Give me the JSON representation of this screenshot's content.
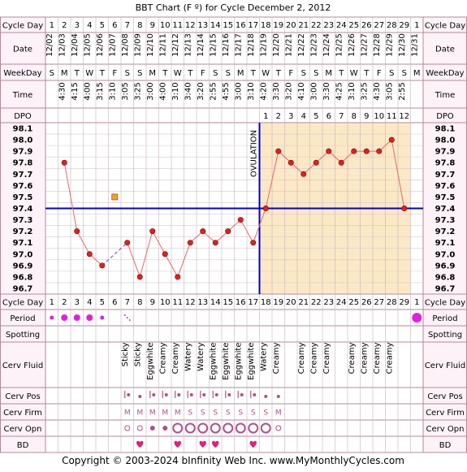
{
  "title": "BBT Chart (F º) for Cycle December 2, 2012",
  "footer": "Copyright © 2003-2024 bInfinity Web Inc.    www.MyMonthlyCycles.com",
  "row_labels": {
    "cycle_day": "Cycle Day",
    "date": "Date",
    "weekday": "WeekDay",
    "time": "Time",
    "dpo": "DPO",
    "period": "Period",
    "spotting": "Spotting",
    "cerv_fluid": "Cerv Fluid",
    "cerv_pos": "Cerv Pos",
    "cerv_firm": "Cerv Firm",
    "cerv_opn": "Cerv Opn",
    "bd": "BD"
  },
  "colors": {
    "border": "#b3899b",
    "label_bg": "#fdf2f7",
    "post_ovulation_bg": "#fbe9c6",
    "coverline": "#0000cc",
    "ovulation_line": "#0000cc",
    "temp_line": "#e26b6b",
    "temp_point": "#e02020",
    "period": "#e020e0",
    "heart": "#e0207a",
    "cerv_marker": "#b0508a"
  },
  "chart_data": {
    "type": "line",
    "cycle_days": [
      "1",
      "2",
      "3",
      "4",
      "5",
      "6",
      "7",
      "8",
      "9",
      "10",
      "11",
      "12",
      "13",
      "14",
      "15",
      "16",
      "17",
      "18",
      "19",
      "20",
      "21",
      "22",
      "23",
      "24",
      "25",
      "26",
      "27",
      "28",
      "29",
      "1"
    ],
    "dates": [
      "12/02",
      "12/03",
      "12/04",
      "12/05",
      "12/06",
      "12/07",
      "12/08",
      "12/09",
      "12/10",
      "12/11",
      "12/12",
      "12/13",
      "12/14",
      "12/15",
      "12/16",
      "12/17",
      "12/18",
      "12/19",
      "12/20",
      "12/21",
      "12/22",
      "12/23",
      "12/24",
      "12/25",
      "12/26",
      "12/27",
      "12/28",
      "12/29",
      "12/30",
      "12/31"
    ],
    "weekdays": [
      "S",
      "M",
      "T",
      "W",
      "T",
      "F",
      "S",
      "S",
      "M",
      "T",
      "W",
      "T",
      "F",
      "S",
      "S",
      "M",
      "T",
      "W",
      "T",
      "F",
      "S",
      "S",
      "M",
      "T",
      "W",
      "T",
      "F",
      "S",
      "S",
      "M"
    ],
    "times": [
      "",
      "4:30",
      "4:15",
      "4:00",
      "3:15",
      "3:10",
      "3:05",
      "3:25",
      "3:00",
      "4:00",
      "3:10",
      "3:40",
      "3:20",
      "2:55",
      "4:55",
      "3:00",
      "3:10",
      "4:20",
      "3:30",
      "3:20",
      "4:10",
      "3:00",
      "3:30",
      "4:25",
      "3:10",
      "3:25",
      "4:30",
      "3:05",
      "2:55",
      ""
    ],
    "dpo": [
      "",
      "",
      "",
      "",
      "",
      "",
      "",
      "",
      "",
      "",
      "",
      "",
      "",
      "",
      "",
      "",
      "",
      "1",
      "2",
      "3",
      "4",
      "5",
      "6",
      "7",
      "8",
      "9",
      "10",
      "11",
      "12",
      ""
    ],
    "temperatures": [
      null,
      97.8,
      97.2,
      97.0,
      96.9,
      null,
      97.1,
      96.8,
      97.2,
      97.0,
      96.8,
      97.1,
      97.2,
      97.1,
      97.2,
      97.3,
      97.1,
      97.4,
      97.9,
      97.8,
      97.7,
      97.8,
      97.9,
      97.8,
      97.9,
      97.9,
      97.9,
      98.0,
      97.4,
      null
    ],
    "questionable_temps": [
      {
        "day_index": 5,
        "value": 97.5
      }
    ],
    "ylim": [
      96.7,
      98.1
    ],
    "y_ticks": [
      "98.1",
      "98.0",
      "97.9",
      "97.8",
      "97.7",
      "97.6",
      "97.5",
      "97.4",
      "97.3",
      "97.2",
      "97.1",
      "97.0",
      "96.9",
      "96.8",
      "96.7"
    ],
    "coverline": 97.4,
    "ovulation_day_index": 16,
    "ovulation_label": "OVULATION",
    "period": [
      "small",
      "medium",
      "medium",
      "medium",
      "small",
      "",
      "dots",
      "",
      "",
      "",
      "",
      "",
      "",
      "",
      "",
      "",
      "",
      "",
      "",
      "",
      "",
      "",
      "",
      "",
      "",
      "",
      "",
      "",
      "",
      "large"
    ],
    "cerv_fluid": [
      "",
      "",
      "",
      "",
      "",
      "",
      "Sticky",
      "Sticky",
      "Eggwhite",
      "Creamy",
      "Creamy",
      "Watery",
      "Watery",
      "Eggwhite",
      "Eggwhite",
      "Eggwhite",
      "Eggwhite",
      "Watery",
      "Creamy",
      "",
      "Creamy",
      "Creamy",
      "Creamy",
      "",
      "Creamy",
      "Creamy",
      "Creamy",
      "Creamy",
      "",
      ""
    ],
    "cerv_pos": [
      "",
      "",
      "",
      "",
      "",
      "",
      "bar-dot",
      "dot",
      "bar-dot",
      "bar-dot",
      "bar-dot",
      "bar-dot",
      "bar-dot",
      "bar-dot",
      "bar-dot",
      "bar-dot",
      "bar-dot",
      "dot",
      "dot",
      "",
      "",
      "",
      "",
      "",
      "",
      "",
      "",
      "",
      "",
      ""
    ],
    "cerv_firm": [
      "",
      "",
      "",
      "",
      "",
      "",
      "M",
      "M",
      "M",
      "M",
      "M",
      "S",
      "S",
      "S",
      "S",
      "S",
      "S",
      "S",
      "M",
      "",
      "",
      "",
      "",
      "",
      "",
      "",
      "",
      "",
      "",
      ""
    ],
    "cerv_opn": [
      "",
      "",
      "",
      "",
      "",
      "",
      "o",
      "o",
      "dot",
      "dot",
      "O",
      "O",
      "O",
      "O",
      "O",
      "O",
      "O",
      "O",
      "o",
      "",
      "",
      "",
      "",
      "",
      "",
      "",
      "",
      "",
      "",
      ""
    ],
    "bd": [
      "",
      "",
      "",
      "",
      "",
      "",
      "",
      "heart",
      "",
      "",
      "heart",
      "",
      "heart",
      "heart",
      "",
      "",
      "heart",
      "",
      "",
      "",
      "",
      "",
      "",
      "",
      "",
      "",
      "",
      "",
      "",
      ""
    ]
  }
}
